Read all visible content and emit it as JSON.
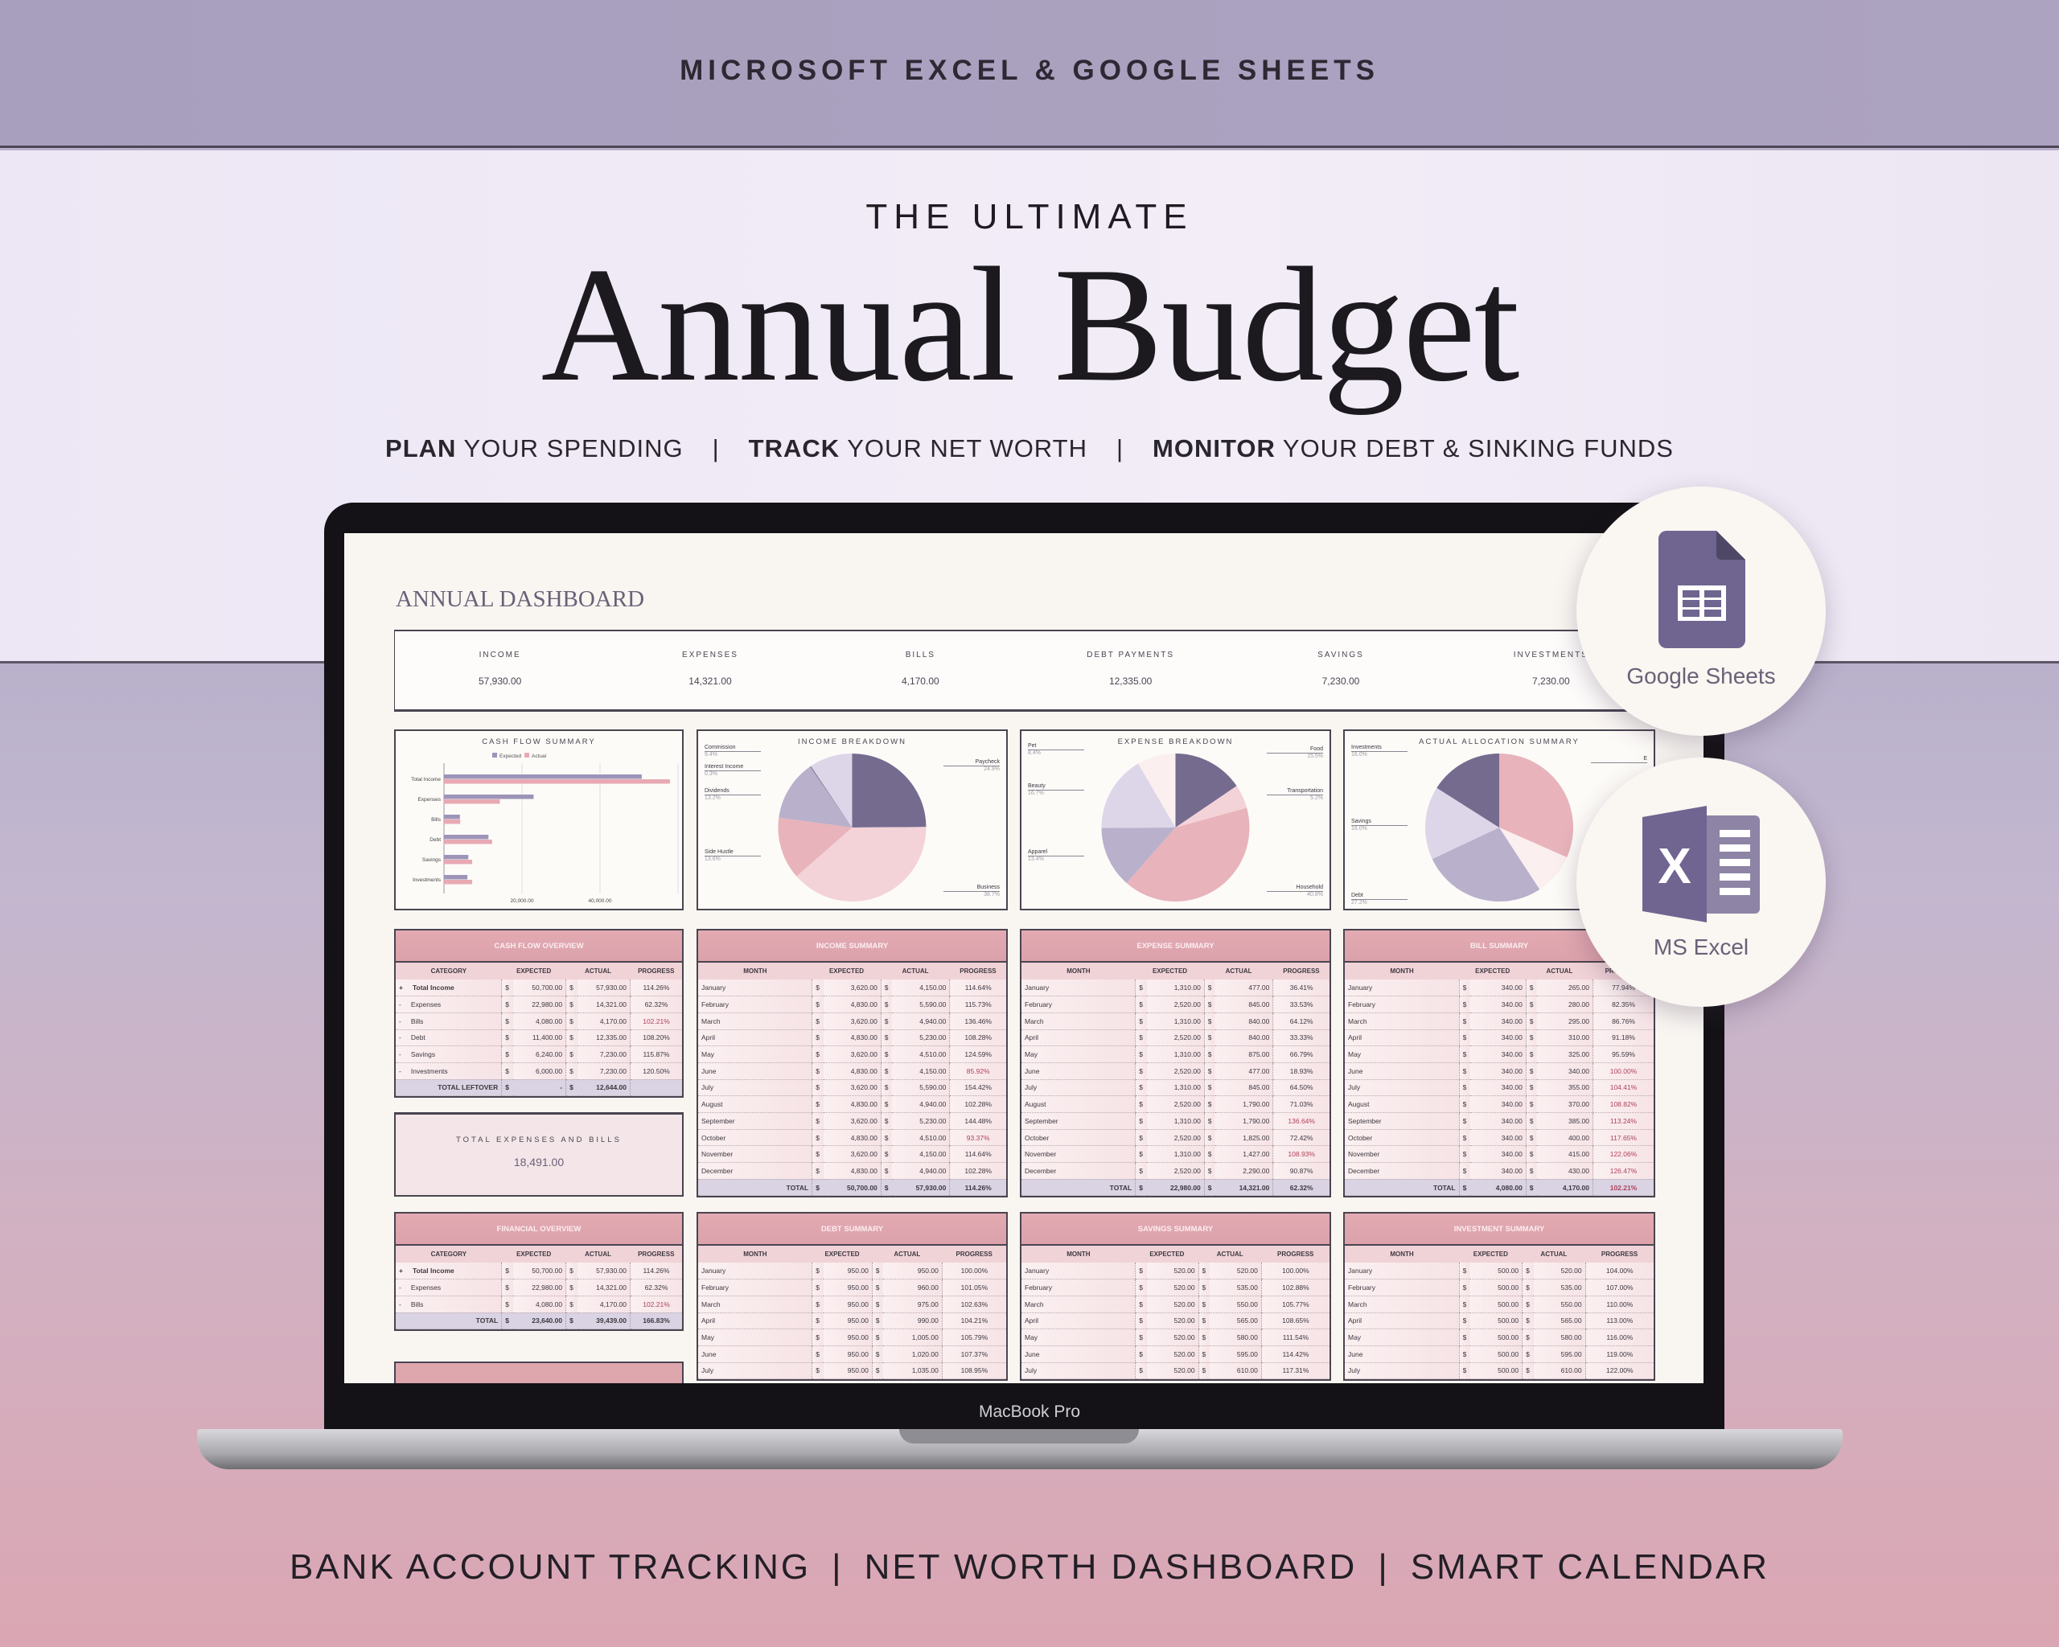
{
  "banner": {
    "top": "MICROSOFT EXCEL & GOOGLE SHEETS"
  },
  "hero": {
    "kicker": "THE ULTIMATE",
    "title": "Annual Budget",
    "features": [
      {
        "bold": "PLAN",
        "rest": " YOUR SPENDING"
      },
      {
        "bold": "TRACK",
        "rest": " YOUR NET WORTH"
      },
      {
        "bold": "MONITOR",
        "rest": " YOUR DEBT & SINKING FUNDS"
      }
    ],
    "separator": "|"
  },
  "footer": {
    "items": [
      "BANK ACCOUNT TRACKING",
      "NET WORTH DASHBOARD",
      "SMART CALENDAR"
    ],
    "separator": "|"
  },
  "laptop": {
    "brand": "MacBook Pro"
  },
  "badges": [
    {
      "label": "Google Sheets",
      "icon": "google-sheets-icon",
      "color": "#6f6590"
    },
    {
      "label": "MS Excel",
      "icon": "excel-icon",
      "color": "#6f6590"
    }
  ],
  "colors": {
    "dark_purple": "#756b8f",
    "lavender": "#b9b0cc",
    "light_lavender": "#dcd6e8",
    "pink": "#e8b3ba",
    "light_pink": "#f3d3d8",
    "blush": "#fbefef",
    "alert": "#b0405a"
  },
  "dashboard": {
    "title": "ANNUAL DASHBOARD",
    "kpis": [
      {
        "label": "INCOME",
        "value": "57,930.00"
      },
      {
        "label": "EXPENSES",
        "value": "14,321.00"
      },
      {
        "label": "BILLS",
        "value": "4,170.00"
      },
      {
        "label": "DEBT PAYMENTS",
        "value": "12,335.00"
      },
      {
        "label": "SAVINGS",
        "value": "7,230.00"
      },
      {
        "label": "INVESTMENTS",
        "value": "7,230.00"
      }
    ],
    "total_box": {
      "label": "TOTAL EXPENSES AND BILLS",
      "value": "18,491.00"
    },
    "tables": [
      {
        "id": "cash-flow-overview",
        "title": "CASH FLOW OVERVIEW",
        "columns": [
          "CATEGORY",
          "EXPECTED",
          "ACTUAL",
          "PROGRESS"
        ],
        "currency": "$",
        "rows": [
          {
            "mark": "+",
            "c": [
              "Total Income",
              "50,700.00",
              "57,930.00",
              "114.26%"
            ],
            "bold": true
          },
          {
            "mark": "-",
            "c": [
              "Expenses",
              "22,980.00",
              "14,321.00",
              "62.32%"
            ]
          },
          {
            "mark": "-",
            "c": [
              "Bills",
              "4,080.00",
              "4,170.00",
              "102.21%"
            ],
            "alert": true
          },
          {
            "mark": "-",
            "c": [
              "Debt",
              "11,400.00",
              "12,335.00",
              "108.20%"
            ]
          },
          {
            "mark": "-",
            "c": [
              "Savings",
              "6,240.00",
              "7,230.00",
              "115.87%"
            ]
          },
          {
            "mark": "-",
            "c": [
              "Investments",
              "6,000.00",
              "7,230.00",
              "120.50%"
            ]
          }
        ],
        "total": {
          "c": [
            "TOTAL LEFTOVER",
            "-",
            "12,644.00",
            ""
          ]
        }
      },
      {
        "id": "income-summary",
        "title": "INCOME SUMMARY",
        "columns": [
          "MONTH",
          "EXPECTED",
          "ACTUAL",
          "PROGRESS"
        ],
        "currency": "$",
        "rows": [
          {
            "c": [
              "January",
              "3,620.00",
              "4,150.00",
              "114.64%"
            ]
          },
          {
            "c": [
              "February",
              "4,830.00",
              "5,590.00",
              "115.73%"
            ]
          },
          {
            "c": [
              "March",
              "3,620.00",
              "4,940.00",
              "136.46%"
            ]
          },
          {
            "c": [
              "April",
              "4,830.00",
              "5,230.00",
              "108.28%"
            ]
          },
          {
            "c": [
              "May",
              "3,620.00",
              "4,510.00",
              "124.59%"
            ]
          },
          {
            "c": [
              "June",
              "4,830.00",
              "4,150.00",
              "85.92%"
            ],
            "alert": true
          },
          {
            "c": [
              "July",
              "3,620.00",
              "5,590.00",
              "154.42%"
            ]
          },
          {
            "c": [
              "August",
              "4,830.00",
              "4,940.00",
              "102.28%"
            ]
          },
          {
            "c": [
              "September",
              "3,620.00",
              "5,230.00",
              "144.48%"
            ]
          },
          {
            "c": [
              "October",
              "4,830.00",
              "4,510.00",
              "93.37%"
            ],
            "alert": true
          },
          {
            "c": [
              "November",
              "3,620.00",
              "4,150.00",
              "114.64%"
            ]
          },
          {
            "c": [
              "December",
              "4,830.00",
              "4,940.00",
              "102.28%"
            ]
          }
        ],
        "total": {
          "c": [
            "TOTAL",
            "50,700.00",
            "57,930.00",
            "114.26%"
          ]
        }
      },
      {
        "id": "expense-summary",
        "title": "EXPENSE SUMMARY",
        "columns": [
          "MONTH",
          "EXPECTED",
          "ACTUAL",
          "PROGRESS"
        ],
        "currency": "$",
        "rows": [
          {
            "c": [
              "January",
              "1,310.00",
              "477.00",
              "36.41%"
            ]
          },
          {
            "c": [
              "February",
              "2,520.00",
              "845.00",
              "33.53%"
            ]
          },
          {
            "c": [
              "March",
              "1,310.00",
              "840.00",
              "64.12%"
            ]
          },
          {
            "c": [
              "April",
              "2,520.00",
              "840.00",
              "33.33%"
            ]
          },
          {
            "c": [
              "May",
              "1,310.00",
              "875.00",
              "66.79%"
            ]
          },
          {
            "c": [
              "June",
              "2,520.00",
              "477.00",
              "18.93%"
            ]
          },
          {
            "c": [
              "July",
              "1,310.00",
              "845.00",
              "64.50%"
            ]
          },
          {
            "c": [
              "August",
              "2,520.00",
              "1,790.00",
              "71.03%"
            ]
          },
          {
            "c": [
              "September",
              "1,310.00",
              "1,790.00",
              "136.64%"
            ],
            "alert": true
          },
          {
            "c": [
              "October",
              "2,520.00",
              "1,825.00",
              "72.42%"
            ]
          },
          {
            "c": [
              "November",
              "1,310.00",
              "1,427.00",
              "108.93%"
            ],
            "alert": true
          },
          {
            "c": [
              "December",
              "2,520.00",
              "2,290.00",
              "90.87%"
            ]
          }
        ],
        "total": {
          "c": [
            "TOTAL",
            "22,980.00",
            "14,321.00",
            "62.32%"
          ]
        }
      },
      {
        "id": "bill-summary",
        "title": "BILL SUMMARY",
        "columns": [
          "MONTH",
          "EXPECTED",
          "ACTUAL",
          "PROGRESS"
        ],
        "currency": "$",
        "rows": [
          {
            "c": [
              "January",
              "340.00",
              "265.00",
              "77.94%"
            ]
          },
          {
            "c": [
              "February",
              "340.00",
              "280.00",
              "82.35%"
            ]
          },
          {
            "c": [
              "March",
              "340.00",
              "295.00",
              "86.76%"
            ]
          },
          {
            "c": [
              "April",
              "340.00",
              "310.00",
              "91.18%"
            ]
          },
          {
            "c": [
              "May",
              "340.00",
              "325.00",
              "95.59%"
            ]
          },
          {
            "c": [
              "June",
              "340.00",
              "340.00",
              "100.00%"
            ],
            "alert": true
          },
          {
            "c": [
              "July",
              "340.00",
              "355.00",
              "104.41%"
            ],
            "alert": true
          },
          {
            "c": [
              "August",
              "340.00",
              "370.00",
              "108.82%"
            ],
            "alert": true
          },
          {
            "c": [
              "September",
              "340.00",
              "385.00",
              "113.24%"
            ],
            "alert": true
          },
          {
            "c": [
              "October",
              "340.00",
              "400.00",
              "117.65%"
            ],
            "alert": true
          },
          {
            "c": [
              "November",
              "340.00",
              "415.00",
              "122.06%"
            ],
            "alert": true
          },
          {
            "c": [
              "December",
              "340.00",
              "430.00",
              "126.47%"
            ],
            "alert": true
          }
        ],
        "total": {
          "c": [
            "TOTAL",
            "4,080.00",
            "4,170.00",
            "102.21%"
          ],
          "alert": true
        }
      },
      {
        "id": "financial-overview",
        "title": "FINANCIAL OVERVIEW",
        "columns": [
          "CATEGORY",
          "EXPECTED",
          "ACTUAL",
          "PROGRESS"
        ],
        "currency": "$",
        "rows": [
          {
            "mark": "+",
            "c": [
              "Total Income",
              "50,700.00",
              "57,930.00",
              "114.26%"
            ],
            "bold": true
          },
          {
            "mark": "-",
            "c": [
              "Expenses",
              "22,980.00",
              "14,321.00",
              "62.32%"
            ]
          },
          {
            "mark": "-",
            "c": [
              "Bills",
              "4,080.00",
              "4,170.00",
              "102.21%"
            ],
            "alert": true
          }
        ],
        "total": {
          "c": [
            "TOTAL",
            "23,640.00",
            "39,439.00",
            "166.83%"
          ]
        }
      },
      {
        "id": "debt-summary",
        "title": "DEBT SUMMARY",
        "columns": [
          "MONTH",
          "EXPECTED",
          "ACTUAL",
          "PROGRESS"
        ],
        "currency": "$",
        "rows": [
          {
            "c": [
              "January",
              "950.00",
              "950.00",
              "100.00%"
            ]
          },
          {
            "c": [
              "February",
              "950.00",
              "960.00",
              "101.05%"
            ]
          },
          {
            "c": [
              "March",
              "950.00",
              "975.00",
              "102.63%"
            ]
          },
          {
            "c": [
              "April",
              "950.00",
              "990.00",
              "104.21%"
            ]
          },
          {
            "c": [
              "May",
              "950.00",
              "1,005.00",
              "105.79%"
            ]
          },
          {
            "c": [
              "June",
              "950.00",
              "1,020.00",
              "107.37%"
            ]
          },
          {
            "c": [
              "July",
              "950.00",
              "1,035.00",
              "108.95%"
            ]
          }
        ]
      },
      {
        "id": "savings-summary",
        "title": "SAVINGS SUMMARY",
        "columns": [
          "MONTH",
          "EXPECTED",
          "ACTUAL",
          "PROGRESS"
        ],
        "currency": "$",
        "rows": [
          {
            "c": [
              "January",
              "520.00",
              "520.00",
              "100.00%"
            ]
          },
          {
            "c": [
              "February",
              "520.00",
              "535.00",
              "102.88%"
            ]
          },
          {
            "c": [
              "March",
              "520.00",
              "550.00",
              "105.77%"
            ]
          },
          {
            "c": [
              "April",
              "520.00",
              "565.00",
              "108.65%"
            ]
          },
          {
            "c": [
              "May",
              "520.00",
              "580.00",
              "111.54%"
            ]
          },
          {
            "c": [
              "June",
              "520.00",
              "595.00",
              "114.42%"
            ]
          },
          {
            "c": [
              "July",
              "520.00",
              "610.00",
              "117.31%"
            ]
          }
        ]
      },
      {
        "id": "investment-summary",
        "title": "INVESTMENT SUMMARY",
        "columns": [
          "MONTH",
          "EXPECTED",
          "ACTUAL",
          "PROGRESS"
        ],
        "currency": "$",
        "rows": [
          {
            "c": [
              "January",
              "500.00",
              "520.00",
              "104.00%"
            ]
          },
          {
            "c": [
              "February",
              "500.00",
              "535.00",
              "107.00%"
            ]
          },
          {
            "c": [
              "March",
              "500.00",
              "550.00",
              "110.00%"
            ]
          },
          {
            "c": [
              "April",
              "500.00",
              "565.00",
              "113.00%"
            ]
          },
          {
            "c": [
              "May",
              "500.00",
              "580.00",
              "116.00%"
            ]
          },
          {
            "c": [
              "June",
              "500.00",
              "595.00",
              "119.00%"
            ]
          },
          {
            "c": [
              "July",
              "500.00",
              "610.00",
              "122.00%"
            ]
          }
        ]
      }
    ]
  },
  "chart_data": [
    {
      "type": "bar",
      "orientation": "horizontal",
      "title": "CASH FLOW SUMMARY",
      "categories": [
        "Total Income",
        "Expenses",
        "Bills",
        "Debt",
        "Savings",
        "Investments"
      ],
      "series": [
        {
          "name": "Expected",
          "color": "#9d94b8",
          "values": [
            50700,
            22980,
            4080,
            11400,
            6240,
            6000
          ]
        },
        {
          "name": "Actual",
          "color": "#e8a9b3",
          "values": [
            57930,
            14321,
            4170,
            12335,
            7230,
            7230
          ]
        }
      ],
      "xticks": [
        "20,000.00",
        "40,000.00"
      ],
      "xlim": [
        0,
        60000
      ],
      "grid": true,
      "legend": "top"
    },
    {
      "type": "pie",
      "title": "INCOME BREAKDOWN",
      "labels": [
        "Paycheck",
        "Business",
        "Side Hustle",
        "Dividends",
        "Interest Income",
        "Commission"
      ],
      "values": [
        24.9,
        38.7,
        13.6,
        13.2,
        0.3,
        9.4
      ],
      "value_labels": [
        "24.9%",
        "38.7%",
        "13.6%",
        "13.2%",
        "0.3%",
        "9.4%"
      ],
      "colors": [
        "#756b8f",
        "#f3d3d8",
        "#e8b3ba",
        "#b9b0cc",
        "#8f86a6",
        "#dcd6e8"
      ]
    },
    {
      "type": "pie",
      "title": "EXPENSE BREAKDOWN",
      "labels": [
        "Food",
        "Transportation",
        "Household",
        "Apparel",
        "Beauty",
        "Pet"
      ],
      "values": [
        15.5,
        5.2,
        40.8,
        13.4,
        16.7,
        8.4
      ],
      "value_labels": [
        "15.5%",
        "5.2%",
        "40.8%",
        "13.4%",
        "16.7%",
        "8.4%"
      ],
      "colors": [
        "#756b8f",
        "#f3d3d8",
        "#e8b3ba",
        "#b9b0cc",
        "#dcd6e8",
        "#fbefef"
      ]
    },
    {
      "type": "pie",
      "title": "ACTUAL ALLOCATION SUMMARY",
      "labels": [
        "E",
        "",
        "Debt",
        "Savings",
        "Investments"
      ],
      "values": [
        31.6,
        9.2,
        27.2,
        16.0,
        16.0
      ],
      "value_labels": [
        "",
        "",
        "27.2%",
        "16.0%",
        "16.0%"
      ],
      "colors": [
        "#e8b3ba",
        "#fbefef",
        "#b9b0cc",
        "#dcd6e8",
        "#756b8f"
      ]
    }
  ]
}
